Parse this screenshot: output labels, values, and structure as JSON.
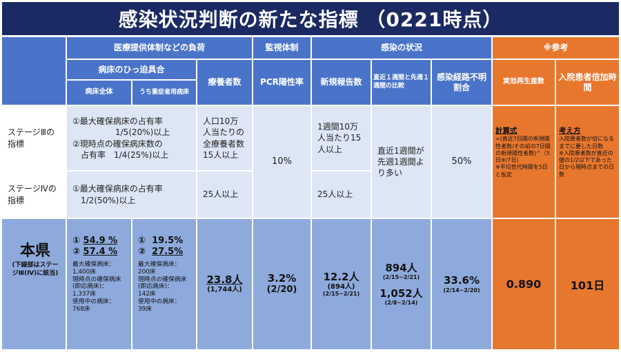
{
  "title": "感染状況判断の新たな指標 （0221時点）",
  "headers": {
    "medical_burden": "医療提供体制などの負荷",
    "monitoring": "監視体制",
    "infection_status": "感染の状況",
    "reference": "※参考",
    "bed_pressure": "病床のひっ迫具合",
    "all_beds": "病床全体",
    "severe_beds": "うち重症者用病床",
    "recuperating": "療養者数",
    "pcr_rate": "PCR陽性率",
    "new_reports": "新規報告数",
    "weekly_compare": "直近１週間と先週１週間の比較",
    "unknown_route": "感染経路不明割合",
    "reproduction": "実効再生産数",
    "doubling": "入院患者倍加時間"
  },
  "stage3": {
    "label": "ステージⅢの指標",
    "beds_line1": "①最大確保病床の占有率",
    "beds_line2": "1/5(20%)以上",
    "beds_line3": "②現時点の確保病床数の",
    "beds_line4": "占有率　1/4(25%)以上",
    "recuperating": "人口10万人当たりの全療養者数15人以上",
    "new_reports": "1週間10万人当たり15人以上"
  },
  "stage4": {
    "label": "ステージⅣの指標",
    "beds_line1": "①最大確保病床の占有率",
    "beds_line2": "1/2(50%)以上",
    "recuperating": "25人以上",
    "new_reports": "25人以上"
  },
  "shared": {
    "pcr": "10%",
    "weekly_compare": "直近1週間が先週1週間より多い",
    "unknown_route": "50%"
  },
  "reference_notes": {
    "calc_heading": "計算式",
    "calc_body": "=(直近7日間の新規陽性者数/その前の7日間の新規陽性者数)^（5日※/7日）",
    "calc_note": "※平均世代時間を5日と仮定",
    "concept_heading": "考え方",
    "concept_body": "入院患者数が倍になるまでに要した日数",
    "concept_note": "※入院患者数が直近の値の1/2以下であった日から現時点までの日数"
  },
  "prefecture": {
    "title": "本県",
    "note": "(下線部はステージⅢ(Ⅳ)に該当)",
    "all_beds": {
      "p1_mark": "①",
      "p1": "54.9 %",
      "p2_mark": "②",
      "p2": "57.4 %",
      "details": [
        "最大確保病床：",
        "1,400床",
        "現時点の確保病床(即応病床)：",
        "1,337床",
        "使用中の病床：",
        "768床"
      ]
    },
    "severe_beds": {
      "p1_mark": "①",
      "p1": "19.5%",
      "p2_mark": "②",
      "p2": "27.5%",
      "details": [
        "最大確保病床：",
        "200床",
        "現時点の確保病床(即応病床)：",
        "142床",
        "使用中の病床：",
        "39床"
      ]
    },
    "recuperating": {
      "value": "23.8人",
      "sub": "(1,744人)"
    },
    "pcr": {
      "value": "3.2%",
      "sub": "(2/20)"
    },
    "new_reports": {
      "value": "12.2人",
      "sub": "(894人)",
      "range": "(2/15~2/21)"
    },
    "weekly": {
      "v1": "894人",
      "r1": "(2/15~2/21)",
      "v2": "1,052人",
      "r2": "(2/8~2/14)"
    },
    "unknown": {
      "value": "33.6%",
      "range": "(2/14~2/20)"
    },
    "reproduction": "0.890",
    "doubling": "101日"
  }
}
